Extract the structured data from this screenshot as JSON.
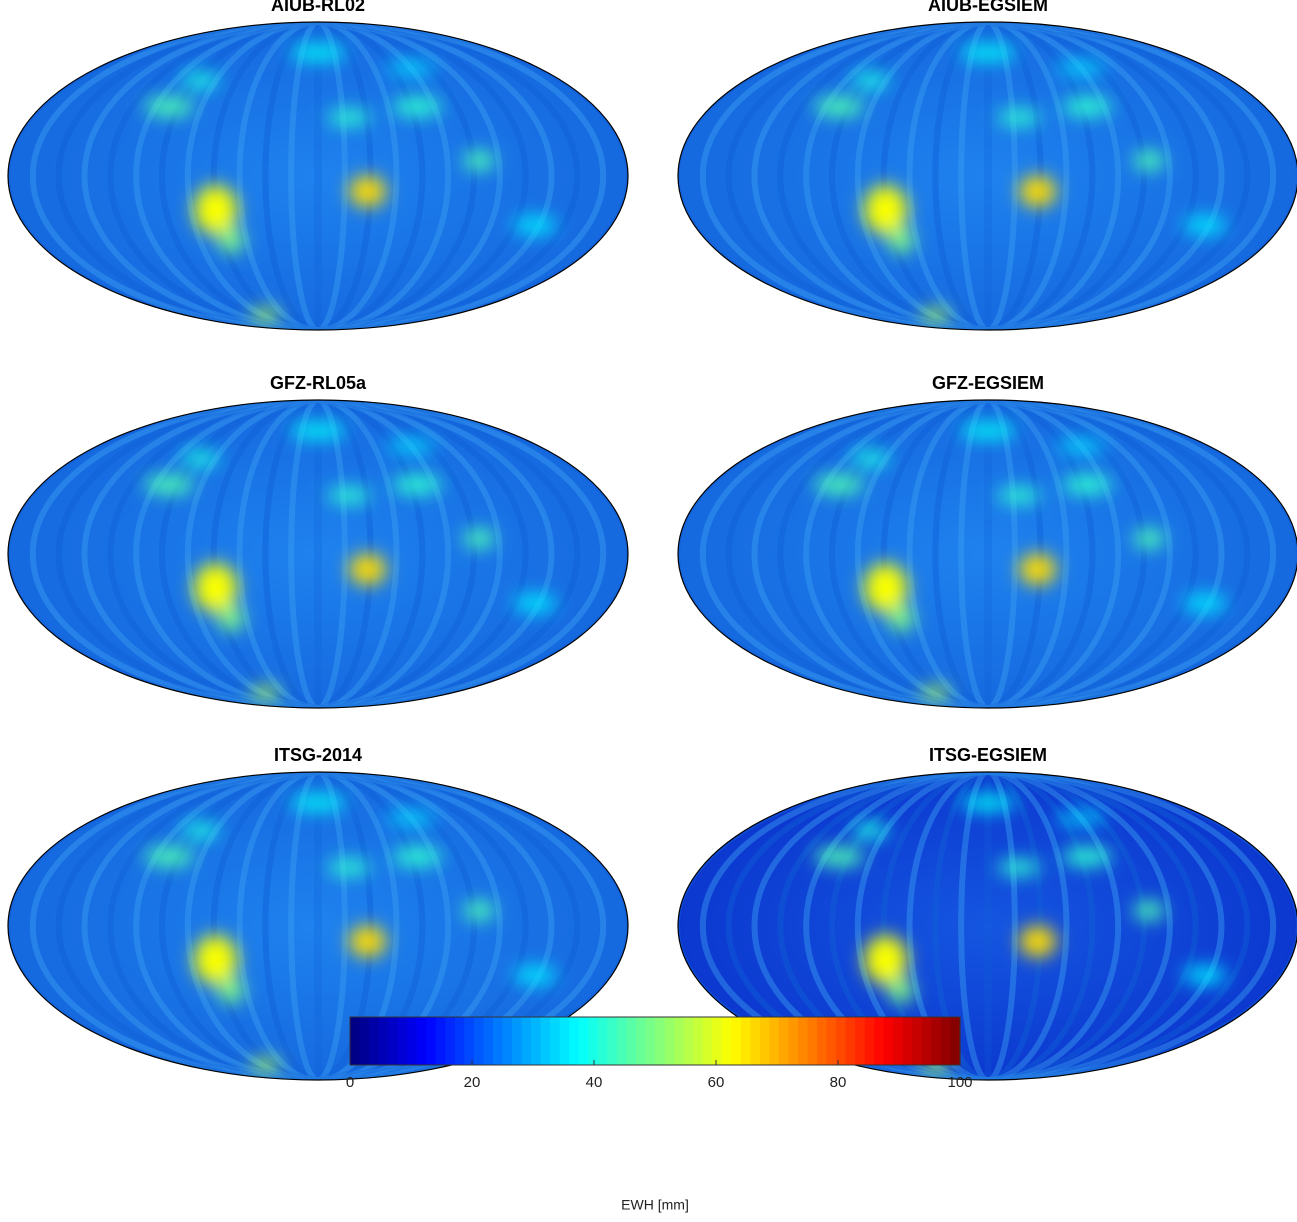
{
  "maps": [
    {
      "title": "AIUB-RL02"
    },
    {
      "title": "AIUB-EGSIEM"
    },
    {
      "title": "GFZ-RL05a"
    },
    {
      "title": "GFZ-EGSIEM"
    },
    {
      "title": "ITSG-2014"
    },
    {
      "title": "ITSG-EGSIEM"
    }
  ],
  "colorbar": {
    "lim": [
      0,
      100
    ],
    "ticks": [
      0,
      20,
      40,
      60,
      80,
      100
    ],
    "label": "EWH [mm]"
  }
}
